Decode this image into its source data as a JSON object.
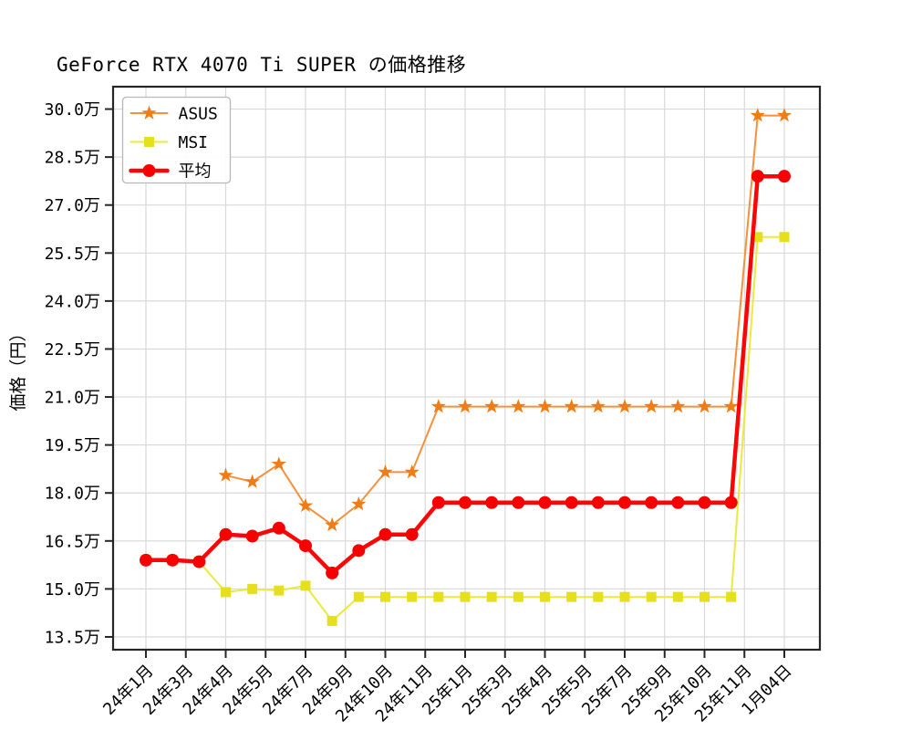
{
  "chart_data": {
    "type": "line",
    "title": "GeForce RTX 4070 Ti SUPER の価格推移",
    "ylabel": "価格（円）",
    "value_unit": "万",
    "grid": true,
    "ylim": [
      13.1,
      30.7
    ],
    "y_ticks": [
      13.5,
      15.0,
      16.5,
      18.0,
      19.5,
      21.0,
      22.5,
      24.0,
      25.5,
      27.0,
      28.5,
      30.0
    ],
    "y_tick_labels": [
      "13.5万",
      "15.0万",
      "16.5万",
      "18.0万",
      "19.5万",
      "21.0万",
      "22.5万",
      "24.0万",
      "25.5万",
      "27.0万",
      "28.5万",
      "30.0万"
    ],
    "x_tick_labels": [
      "24年1月",
      "24年3月",
      "24年4月",
      "24年5月",
      "24年7月",
      "24年9月",
      "24年10月",
      "24年11月",
      "25年1月",
      "25年3月",
      "25年4月",
      "25年5月",
      "25年7月",
      "25年9月",
      "25年10月",
      "25年11月",
      "1月04日"
    ],
    "x_tick_indices": [
      0,
      1.5,
      3,
      4.5,
      6,
      7.5,
      9,
      10.5,
      12,
      13.5,
      15,
      16.5,
      18,
      19.5,
      21,
      22.5,
      24
    ],
    "n_points": 25,
    "series": [
      {
        "name": "ASUS",
        "marker": "star",
        "line_color": "#f5913d",
        "marker_color": "#f07c16",
        "line_width": 2,
        "values": [
          null,
          null,
          null,
          18.55,
          18.35,
          18.9,
          17.6,
          17.0,
          17.65,
          18.65,
          18.65,
          20.7,
          20.7,
          20.7,
          20.7,
          20.7,
          20.7,
          20.7,
          20.7,
          20.7,
          20.7,
          20.7,
          20.7,
          29.8,
          29.8
        ]
      },
      {
        "name": "MSI",
        "marker": "square",
        "line_color": "#ebe93e",
        "marker_color": "#e6df1e",
        "line_width": 2,
        "values": [
          15.9,
          15.9,
          15.85,
          14.9,
          15.0,
          14.95,
          15.1,
          14.0,
          14.75,
          14.75,
          14.75,
          14.75,
          14.75,
          14.75,
          14.75,
          14.75,
          14.75,
          14.75,
          14.75,
          14.75,
          14.75,
          14.75,
          14.75,
          26.0,
          26.0
        ]
      },
      {
        "name": "平均",
        "marker": "circle",
        "line_color": "#fb0505",
        "marker_color": "#f80000",
        "line_width": 4.5,
        "values": [
          15.9,
          15.9,
          15.85,
          16.7,
          16.65,
          16.9,
          16.35,
          15.5,
          16.2,
          16.7,
          16.7,
          17.7,
          17.7,
          17.7,
          17.7,
          17.7,
          17.7,
          17.7,
          17.7,
          17.7,
          17.7,
          17.7,
          17.7,
          27.9,
          27.9
        ]
      }
    ],
    "legend": {
      "position": "upper-left",
      "entries": [
        "ASUS",
        "MSI",
        "平均"
      ]
    },
    "colors": {
      "grid": "#d9d9d9",
      "spine": "#262626",
      "background": "#ffffff",
      "legend_border": "#b8b8b8"
    }
  }
}
